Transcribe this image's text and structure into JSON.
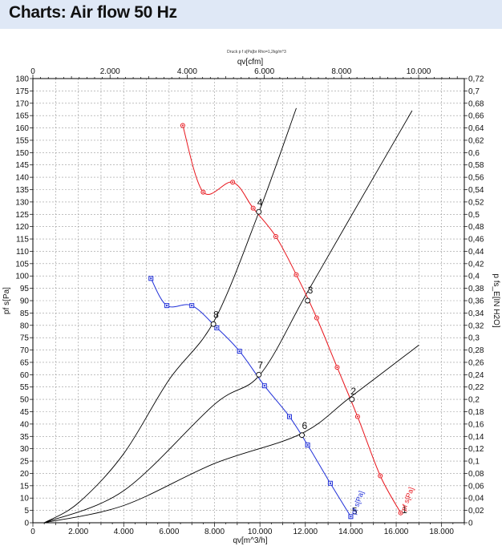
{
  "header": {
    "title": "Charts: Air flow 50 Hz"
  },
  "chart_data": {
    "type": "line",
    "subtitle": "Druck p f s[Pa]br Rho=1,2kg/m^3",
    "x_axis": {
      "label": "qv[m^3/h]",
      "range": [
        0,
        19000
      ],
      "major_ticks": [
        0,
        2000,
        4000,
        6000,
        8000,
        10000,
        12000,
        14000,
        16000,
        18000
      ],
      "tick_labels": [
        "0",
        "2.000",
        "4.000",
        "6.000",
        "8.000",
        "10.000",
        "12.000",
        "14.000",
        "16.000",
        "18.000"
      ]
    },
    "x2_axis": {
      "label": "qv[cfm]",
      "range": [
        0,
        11183
      ],
      "ticks": [
        0,
        2000,
        4000,
        6000,
        8000,
        10000
      ],
      "tick_labels": [
        "0",
        "2.000",
        "4.000",
        "6.000",
        "8.000",
        "10.000"
      ]
    },
    "y_axis": {
      "label": "pf s[Pa]",
      "range": [
        0,
        180
      ],
      "ticks": [
        0,
        5,
        10,
        15,
        20,
        25,
        30,
        35,
        40,
        45,
        50,
        55,
        60,
        65,
        70,
        75,
        80,
        85,
        90,
        95,
        100,
        105,
        110,
        115,
        120,
        125,
        130,
        135,
        140,
        145,
        150,
        155,
        160,
        165,
        170,
        175,
        180
      ],
      "tick_labels": [
        "0",
        "5",
        "10",
        "15",
        "20",
        "25",
        "30",
        "35",
        "40",
        "45",
        "50",
        "55",
        "60",
        "65",
        "70",
        "75",
        "80",
        "85",
        "90",
        "95",
        "100",
        "105",
        "110",
        "115",
        "120",
        "125",
        "130",
        "135",
        "140",
        "145",
        "150",
        "155",
        "160",
        "165",
        "170",
        "175",
        "180"
      ]
    },
    "y2_axis": {
      "label": "p fs_E[IN H2O]",
      "range": [
        0,
        0.72
      ],
      "ticks": [
        0,
        0.02,
        0.04,
        0.06,
        0.08,
        0.1,
        0.12,
        0.14,
        0.16,
        0.18,
        0.2,
        0.22,
        0.24,
        0.26,
        0.28,
        0.3,
        0.32,
        0.34,
        0.36,
        0.38,
        0.4,
        0.42,
        0.44,
        0.46,
        0.48,
        0.5,
        0.52,
        0.54,
        0.56,
        0.58,
        0.6,
        0.62,
        0.64,
        0.66,
        0.68,
        0.7,
        0.72
      ],
      "tick_labels": [
        "0",
        "0,02",
        "0,04",
        "0,06",
        "0,08",
        "0,1",
        "0,12",
        "0,14",
        "0,16",
        "0,18",
        "0,2",
        "0,22",
        "0,24",
        "0,26",
        "0,28",
        "0,3",
        "0,32",
        "0,34",
        "0,36",
        "0,38",
        "0,4",
        "0,42",
        "0,44",
        "0,46",
        "0,48",
        "0,5",
        "0,52",
        "0,54",
        "0,56",
        "0,58",
        "0,6",
        "0,62",
        "0,64",
        "0,66",
        "0,68",
        "0,7",
        "0,72"
      ]
    },
    "grid": true,
    "series": [
      {
        "name": "pf s[Pa]",
        "color": "#e8141b",
        "marker": "circle",
        "points": [
          [
            6600,
            161
          ],
          [
            7500,
            134
          ],
          [
            8800,
            138
          ],
          [
            9700,
            127.5
          ],
          [
            10700,
            116
          ],
          [
            11600,
            100.5
          ],
          [
            12500,
            83
          ],
          [
            13400,
            63
          ],
          [
            14300,
            43
          ],
          [
            15300,
            19
          ],
          [
            16200,
            4
          ]
        ],
        "labels": [
          {
            "text": "4",
            "x": 9880,
            "y": 127.5
          },
          {
            "text": "3",
            "x": 12100,
            "y": 92
          },
          {
            "text": "2",
            "x": 14000,
            "y": 51
          },
          {
            "text": "1",
            "x": 16250,
            "y": 3
          }
        ],
        "end_label": "pf s[Pa]"
      },
      {
        "name": "pf s[Pa]",
        "color": "#1f2fd8",
        "marker": "square",
        "points": [
          [
            5200,
            99
          ],
          [
            5900,
            88
          ],
          [
            7000,
            88
          ],
          [
            8100,
            79
          ],
          [
            9100,
            69.5
          ],
          [
            10200,
            55.5
          ],
          [
            11300,
            43
          ],
          [
            12100,
            31.5
          ],
          [
            13100,
            16
          ],
          [
            14000,
            2.5
          ]
        ],
        "labels": [
          {
            "text": "8",
            "x": 7950,
            "y": 82
          },
          {
            "text": "7",
            "x": 9900,
            "y": 61.5
          },
          {
            "text": "6",
            "x": 11850,
            "y": 37
          },
          {
            "text": "5",
            "x": 14050,
            "y": 2.5
          }
        ],
        "end_label": "pf s[Pa]"
      }
    ],
    "system_curves": [
      {
        "name": "system-curve-steep",
        "color": "#000000",
        "points": [
          [
            500,
            0
          ],
          [
            2000,
            8
          ],
          [
            4000,
            28
          ],
          [
            6000,
            58
          ],
          [
            8000,
            82
          ],
          [
            10000,
            127
          ],
          [
            11600,
            168
          ]
        ]
      },
      {
        "name": "system-curve-mid",
        "color": "#000000",
        "points": [
          [
            500,
            0
          ],
          [
            4000,
            13
          ],
          [
            8000,
            48
          ],
          [
            10000,
            60
          ],
          [
            12000,
            92
          ],
          [
            14000,
            124
          ],
          [
            16700,
            167
          ]
        ]
      },
      {
        "name": "system-curve-flat",
        "color": "#000000",
        "points": [
          [
            500,
            0
          ],
          [
            4000,
            7
          ],
          [
            8000,
            24
          ],
          [
            11800,
            36
          ],
          [
            14000,
            51
          ],
          [
            17000,
            72
          ]
        ]
      }
    ],
    "operating_points": [
      {
        "name": "op-4",
        "x": 9950,
        "y": 126
      },
      {
        "name": "op-3",
        "x": 12100,
        "y": 90
      },
      {
        "name": "op-2",
        "x": 14050,
        "y": 50
      },
      {
        "name": "op-8",
        "x": 7950,
        "y": 80.5
      },
      {
        "name": "op-7",
        "x": 9950,
        "y": 60
      },
      {
        "name": "op-6",
        "x": 11850,
        "y": 35.5
      }
    ]
  }
}
